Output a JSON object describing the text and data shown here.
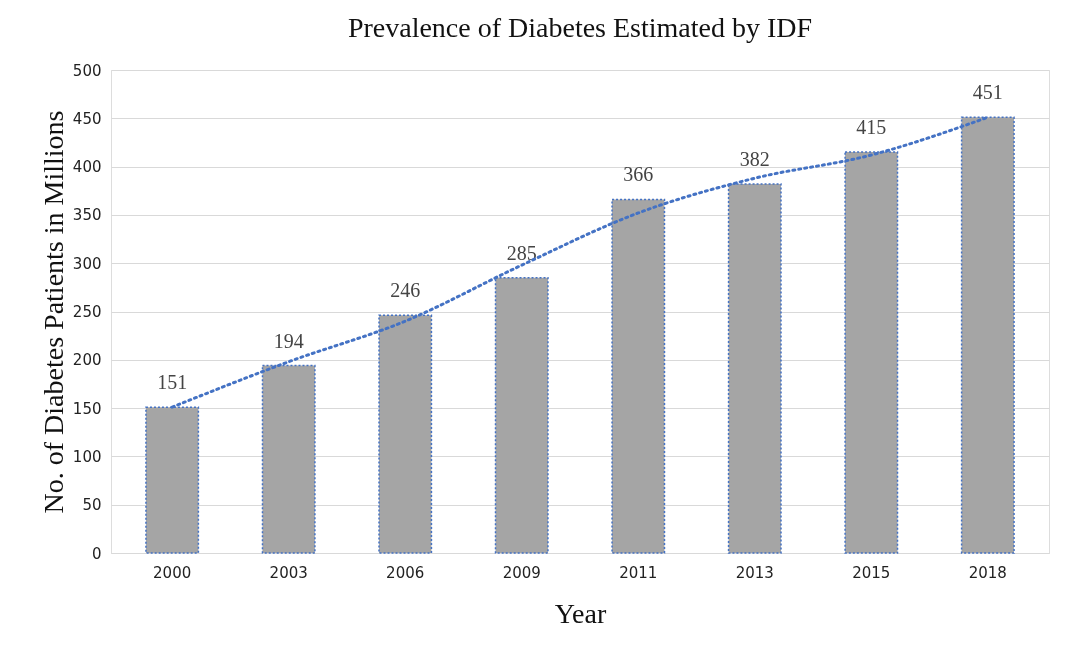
{
  "chart_data": {
    "type": "bar",
    "title": "Prevalence of Diabetes Estimated by IDF",
    "xlabel": "Year",
    "ylabel": "No. of Diabetes Patients in Millions",
    "categories": [
      "2000",
      "2003",
      "2006",
      "2009",
      "2011",
      "2013",
      "2015",
      "2018"
    ],
    "series": [
      {
        "color": "#a5a5a5",
        "values": [
          151,
          194,
          246,
          285,
          366,
          382,
          415,
          451
        ],
        "value_labels": [
          "151",
          "194",
          "246",
          "285",
          "366",
          "382",
          "415",
          "451"
        ]
      },
      {
        "type": "line",
        "color": "#4472c4",
        "line_style": "dotted",
        "values": [
          151,
          198,
          240,
          298,
          352,
          388,
          412,
          451
        ]
      }
    ],
    "ylim": [
      0,
      500
    ],
    "yticks": [
      0,
      50,
      100,
      150,
      200,
      250,
      300,
      350,
      400,
      450,
      500
    ],
    "grid": "y"
  }
}
